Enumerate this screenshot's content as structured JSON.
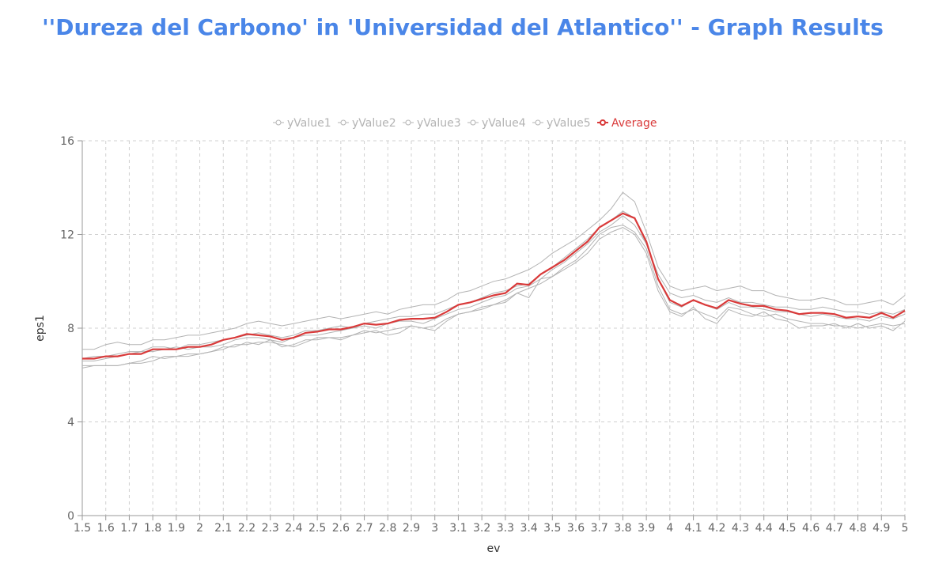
{
  "page": {
    "title": "''Dureza del Carbono' in 'Universidad del Atlantico'' - Graph Results"
  },
  "chart_data": {
    "type": "line",
    "title": "''Dureza del Carbono' in 'Universidad del Atlantico'' - Graph Results",
    "xlabel": "ev",
    "ylabel": "eps1",
    "xlim": [
      1.5,
      5.0
    ],
    "ylim": [
      0,
      16
    ],
    "x_ticks": [
      "1.5",
      "1.6",
      "1.7",
      "1.8",
      "1.9",
      "2",
      "2.1",
      "2.2",
      "2.3",
      "2.4",
      "2.5",
      "2.6",
      "2.7",
      "2.8",
      "2.9",
      "3",
      "3.1",
      "3.2",
      "3.3",
      "3.4",
      "3.5",
      "3.6",
      "3.7",
      "3.8",
      "3.9",
      "4",
      "4.1",
      "4.2",
      "4.3",
      "4.4",
      "4.5",
      "4.6",
      "4.7",
      "4.8",
      "4.9",
      "5"
    ],
    "y_ticks": [
      "0",
      "4",
      "8",
      "12",
      "16"
    ],
    "grid": true,
    "legend_position": "top-center",
    "colors": {
      "series": "#b3b3b3",
      "average": "#d93a3a",
      "grid": "#d0d0d0",
      "axis": "#999999"
    },
    "x": [
      1.5,
      1.55,
      1.6,
      1.65,
      1.7,
      1.75,
      1.8,
      1.85,
      1.9,
      1.95,
      2.0,
      2.05,
      2.1,
      2.15,
      2.2,
      2.25,
      2.3,
      2.35,
      2.4,
      2.45,
      2.5,
      2.55,
      2.6,
      2.65,
      2.7,
      2.75,
      2.8,
      2.85,
      2.9,
      2.95,
      3.0,
      3.05,
      3.1,
      3.15,
      3.2,
      3.25,
      3.3,
      3.35,
      3.4,
      3.45,
      3.5,
      3.55,
      3.6,
      3.65,
      3.7,
      3.75,
      3.8,
      3.85,
      3.9,
      3.95,
      4.0,
      4.05,
      4.1,
      4.15,
      4.2,
      4.25,
      4.3,
      4.35,
      4.4,
      4.45,
      4.5,
      4.55,
      4.6,
      4.65,
      4.7,
      4.75,
      4.8,
      4.85,
      4.9,
      4.95,
      5.0
    ],
    "series": [
      {
        "name": "yValue1",
        "values": [
          7.1,
          7.1,
          7.3,
          7.4,
          7.3,
          7.3,
          7.5,
          7.5,
          7.6,
          7.7,
          7.7,
          7.8,
          7.9,
          8.0,
          8.2,
          8.3,
          8.2,
          8.1,
          8.2,
          8.3,
          8.4,
          8.5,
          8.4,
          8.5,
          8.6,
          8.7,
          8.6,
          8.8,
          8.9,
          9.0,
          9.0,
          9.2,
          9.5,
          9.6,
          9.8,
          10.0,
          10.1,
          10.3,
          10.5,
          10.8,
          11.2,
          11.5,
          11.8,
          12.2,
          12.6,
          13.1,
          13.8,
          13.4,
          12.1,
          10.6,
          9.8,
          9.6,
          9.7,
          9.8,
          9.6,
          9.7,
          9.8,
          9.6,
          9.6,
          9.4,
          9.3,
          9.2,
          9.2,
          9.3,
          9.2,
          9.0,
          9.0,
          9.1,
          9.2,
          9.0,
          9.4
        ]
      },
      {
        "name": "yValue2",
        "values": [
          6.4,
          6.4,
          6.4,
          6.4,
          6.5,
          6.5,
          6.6,
          6.8,
          6.8,
          6.8,
          6.9,
          7.0,
          7.2,
          7.2,
          7.4,
          7.3,
          7.5,
          7.2,
          7.3,
          7.5,
          7.5,
          7.6,
          7.6,
          7.7,
          7.9,
          7.8,
          7.9,
          8.0,
          8.1,
          8.0,
          8.1,
          8.4,
          8.6,
          8.7,
          8.9,
          9.0,
          9.1,
          9.5,
          9.3,
          10.1,
          10.2,
          10.6,
          10.9,
          11.4,
          12.0,
          12.3,
          12.4,
          12.1,
          11.4,
          9.8,
          8.8,
          8.6,
          8.8,
          8.6,
          8.4,
          8.9,
          8.8,
          8.6,
          8.5,
          8.6,
          8.4,
          8.3,
          8.2,
          8.2,
          8.1,
          8.1,
          8.0,
          8.1,
          8.2,
          8.1,
          8.2
        ]
      },
      {
        "name": "yValue3",
        "values": [
          6.7,
          6.8,
          6.8,
          6.9,
          7.0,
          7.0,
          7.2,
          7.2,
          7.1,
          7.3,
          7.3,
          7.4,
          7.5,
          7.6,
          7.7,
          7.8,
          7.7,
          7.6,
          7.7,
          7.9,
          7.9,
          8.0,
          8.1,
          8.0,
          8.2,
          8.3,
          8.4,
          8.5,
          8.5,
          8.6,
          8.6,
          8.8,
          9.0,
          9.1,
          9.3,
          9.5,
          9.6,
          9.8,
          9.9,
          10.3,
          10.6,
          11.0,
          11.4,
          11.8,
          12.3,
          12.6,
          13.0,
          12.7,
          11.6,
          10.3,
          9.5,
          9.3,
          9.4,
          9.2,
          9.1,
          9.3,
          9.1,
          9.1,
          9.0,
          8.9,
          8.9,
          8.8,
          8.8,
          8.9,
          8.8,
          8.7,
          8.7,
          8.6,
          8.7,
          8.6,
          8.8
        ]
      },
      {
        "name": "yValue4",
        "values": [
          6.3,
          6.4,
          6.4,
          6.4,
          6.5,
          6.6,
          6.8,
          6.7,
          6.8,
          6.9,
          6.9,
          7.0,
          7.1,
          7.3,
          7.3,
          7.4,
          7.4,
          7.3,
          7.2,
          7.4,
          7.6,
          7.6,
          7.5,
          7.7,
          7.8,
          7.9,
          7.7,
          7.8,
          8.1,
          8.0,
          7.9,
          8.3,
          8.6,
          8.7,
          8.8,
          9.0,
          9.2,
          9.5,
          9.7,
          9.9,
          10.2,
          10.5,
          10.8,
          11.2,
          11.8,
          12.1,
          12.3,
          12.0,
          11.2,
          9.6,
          8.7,
          8.5,
          8.9,
          8.4,
          8.2,
          8.8,
          8.6,
          8.5,
          8.7,
          8.4,
          8.3,
          8.0,
          8.1,
          8.1,
          8.2,
          8.0,
          8.2,
          8.0,
          8.1,
          7.9,
          8.3
        ]
      },
      {
        "name": "yValue5",
        "values": [
          6.6,
          6.6,
          6.7,
          6.8,
          6.9,
          7.0,
          7.0,
          7.1,
          7.2,
          7.1,
          7.2,
          7.2,
          7.3,
          7.5,
          7.6,
          7.6,
          7.5,
          7.4,
          7.6,
          7.7,
          7.7,
          7.8,
          7.9,
          8.0,
          8.1,
          8.0,
          8.2,
          8.3,
          8.3,
          8.2,
          8.4,
          8.6,
          8.8,
          8.9,
          9.1,
          9.3,
          9.4,
          9.7,
          9.8,
          10.1,
          10.5,
          10.8,
          11.2,
          11.6,
          12.1,
          12.4,
          12.8,
          12.4,
          11.6,
          10.1,
          9.1,
          8.9,
          9.2,
          9.0,
          8.8,
          9.1,
          8.9,
          8.9,
          8.8,
          8.7,
          8.7,
          8.6,
          8.5,
          8.6,
          8.5,
          8.4,
          8.4,
          8.3,
          8.5,
          8.4,
          8.6
        ]
      },
      {
        "name": "Average",
        "values": [
          6.7,
          6.7,
          6.8,
          6.8,
          6.9,
          6.9,
          7.1,
          7.1,
          7.1,
          7.2,
          7.2,
          7.3,
          7.5,
          7.6,
          7.75,
          7.7,
          7.65,
          7.5,
          7.6,
          7.8,
          7.85,
          7.95,
          7.95,
          8.05,
          8.2,
          8.15,
          8.2,
          8.35,
          8.4,
          8.4,
          8.45,
          8.7,
          9.0,
          9.1,
          9.25,
          9.4,
          9.5,
          9.9,
          9.85,
          10.3,
          10.6,
          10.9,
          11.3,
          11.7,
          12.3,
          12.6,
          12.9,
          12.7,
          11.7,
          10.1,
          9.2,
          8.95,
          9.2,
          9.0,
          8.85,
          9.2,
          9.05,
          8.95,
          8.95,
          8.8,
          8.75,
          8.6,
          8.65,
          8.65,
          8.6,
          8.45,
          8.5,
          8.45,
          8.65,
          8.45,
          8.75
        ]
      }
    ]
  }
}
